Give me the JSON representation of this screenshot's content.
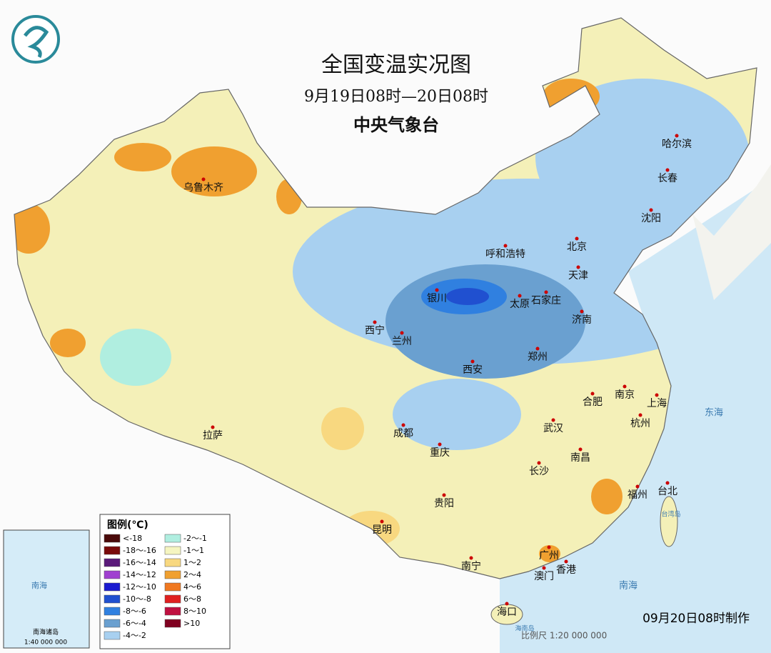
{
  "header": {
    "title": "全国变温实况图",
    "subtitle": "9月19日08时—20日08时",
    "agency": "中央气象台"
  },
  "cities": [
    "乌鲁木齐",
    "哈尔滨",
    "长春",
    "沈阳",
    "呼和浩特",
    "北京",
    "天津",
    "银川",
    "太原",
    "石家庄",
    "济南",
    "西宁",
    "兰州",
    "郑州",
    "西安",
    "合肥",
    "南京",
    "上海",
    "杭州",
    "拉萨",
    "成都",
    "武汉",
    "重庆",
    "南昌",
    "长沙",
    "福州",
    "台北",
    "贵阳",
    "昆明",
    "广州",
    "南宁",
    "澳门",
    "香港",
    "海口"
  ],
  "seas": [
    "东海",
    "南海",
    "台湾岛",
    "海南岛"
  ],
  "legend": {
    "title": "图例(℃)",
    "items": [
      {
        "label": "<-18",
        "color": "#4a0a0a"
      },
      {
        "label": "-18～-16",
        "color": "#7a0a0a"
      },
      {
        "label": "-16～-14",
        "color": "#5a1a7a"
      },
      {
        "label": "-14～-12",
        "color": "#a040d0"
      },
      {
        "label": "-12～-10",
        "color": "#1a1ad0"
      },
      {
        "label": "-10～-8",
        "color": "#2050d0"
      },
      {
        "label": "-8～-6",
        "color": "#3080e0"
      },
      {
        "label": "-6～-4",
        "color": "#6aa0d0"
      },
      {
        "label": "-4～-2",
        "color": "#a8d0f0"
      },
      {
        "label": "-2～-1",
        "color": "#b0eee0"
      },
      {
        "label": "-1～1",
        "color": "#f5f5c0"
      },
      {
        "label": "1～2",
        "color": "#f8d880"
      },
      {
        "label": "2～4",
        "color": "#f0a030"
      },
      {
        "label": "4～6",
        "color": "#f07820"
      },
      {
        "label": "6～8",
        "color": "#e02020"
      },
      {
        "label": "8～10",
        "color": "#c01040"
      },
      {
        "label": ">10",
        "color": "#800020"
      }
    ]
  },
  "inset": {
    "title": "南海诸岛",
    "scale": "1:40 000 000",
    "sea": "南海"
  },
  "footer": {
    "made": "09月20日08时制作",
    "scale": "比例尺 1:20 000 000"
  }
}
